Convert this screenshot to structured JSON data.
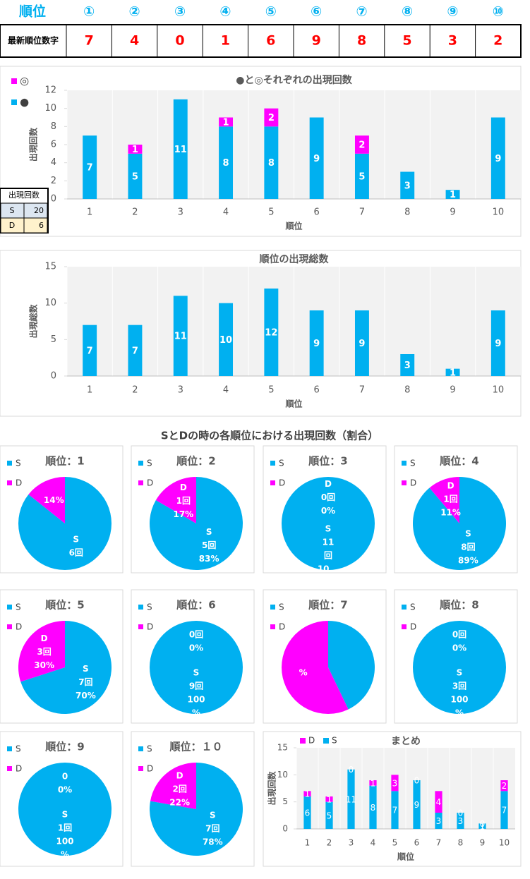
{
  "table": {
    "header": [
      "順位",
      "①",
      "②",
      "③",
      "④",
      "⑤",
      "⑥",
      "⑦",
      "⑧",
      "⑨",
      "⑩"
    ],
    "rows": [
      [
        "最新順位数字",
        7,
        4,
        0,
        1,
        6,
        9,
        8,
        5,
        3,
        2
      ]
    ]
  },
  "side_table": {
    "header": "出現回数",
    "rows": [
      [
        "S",
        20
      ],
      [
        "D",
        6
      ]
    ]
  },
  "heading": "SとDの時の各順位における出現回数（割合）",
  "chart_data": [
    {
      "type": "bar",
      "stacked": true,
      "title": "●と◎それぞれの出現回数",
      "x_label": "順位",
      "y_label": "出現回数",
      "legend": "top-left",
      "categories": [
        1,
        2,
        3,
        4,
        5,
        6,
        7,
        8,
        9,
        10
      ],
      "ylim": [
        0,
        12
      ],
      "yticks": [
        0,
        2,
        4,
        6,
        8,
        10,
        12
      ],
      "series": [
        {
          "name": "●",
          "color": "#00b0f0",
          "values": [
            7,
            5,
            11,
            8,
            8,
            9,
            5,
            3,
            1,
            9
          ]
        },
        {
          "name": "◎",
          "color": "#ff00ff",
          "values": [
            0,
            1,
            0,
            1,
            2,
            0,
            2,
            0,
            0,
            0
          ],
          "value_labels": [
            null,
            "1",
            null,
            "1",
            "2",
            null,
            "2",
            null,
            null,
            null
          ]
        }
      ]
    },
    {
      "type": "bar",
      "title": "順位の出現総数",
      "x_label": "順位",
      "y_label": "出現総数",
      "categories": [
        1,
        2,
        3,
        4,
        5,
        6,
        7,
        8,
        9,
        10
      ],
      "ylim": [
        0,
        15
      ],
      "yticks": [
        0,
        5,
        10,
        15
      ],
      "color": "#00b0f0",
      "values": [
        7,
        7,
        11,
        10,
        12,
        9,
        9,
        3,
        1,
        9
      ]
    },
    {
      "type": "pie",
      "title": "順位：1",
      "categories": [
        "S",
        "D"
      ],
      "colors": [
        "#00b0f0",
        "#ff00ff"
      ],
      "values": [
        6,
        1
      ],
      "value_labels": [
        [
          "S",
          "6回"
        ],
        [
          "14%"
        ]
      ]
    },
    {
      "type": "pie",
      "title": "順位：2",
      "categories": [
        "S",
        "D"
      ],
      "colors": [
        "#00b0f0",
        "#ff00ff"
      ],
      "values": [
        5,
        1
      ],
      "value_labels": [
        [
          "S",
          "5回",
          "83%"
        ],
        [
          "D",
          "1回",
          "17%"
        ]
      ]
    },
    {
      "type": "pie",
      "title": "順位：3",
      "categories": [
        "S",
        "D"
      ],
      "colors": [
        "#00b0f0",
        "#ff00ff"
      ],
      "values": [
        11,
        0
      ],
      "value_labels": [
        [
          "S",
          "11",
          "回",
          "10..."
        ],
        [
          "D",
          "0回",
          "0%"
        ]
      ]
    },
    {
      "type": "pie",
      "title": "順位：4",
      "categories": [
        "S",
        "D"
      ],
      "colors": [
        "#00b0f0",
        "#ff00ff"
      ],
      "values": [
        8,
        1
      ],
      "value_labels": [
        [
          "S",
          "8回",
          "89%"
        ],
        [
          "D",
          "1回",
          "11%"
        ]
      ]
    },
    {
      "type": "pie",
      "title": "順位：5",
      "categories": [
        "S",
        "D"
      ],
      "colors": [
        "#00b0f0",
        "#ff00ff"
      ],
      "values": [
        7,
        3
      ],
      "value_labels": [
        [
          "S",
          "7回",
          "70%"
        ],
        [
          "D",
          "3回",
          "30%"
        ]
      ]
    },
    {
      "type": "pie",
      "title": "順位：6",
      "categories": [
        "S",
        "D"
      ],
      "colors": [
        "#00b0f0",
        "#ff00ff"
      ],
      "values": [
        9,
        0
      ],
      "value_labels": [
        [
          "S",
          "9回",
          "100",
          "%"
        ],
        [
          "0回",
          "0%"
        ]
      ]
    },
    {
      "type": "pie",
      "title": "順位：7",
      "categories": [
        "S",
        "D"
      ],
      "colors": [
        "#00b0f0",
        "#ff00ff"
      ],
      "values": [
        3,
        4
      ],
      "value_labels": [
        [],
        [
          "%"
        ]
      ]
    },
    {
      "type": "pie",
      "title": "順位：8",
      "categories": [
        "S",
        "D"
      ],
      "colors": [
        "#00b0f0",
        "#ff00ff"
      ],
      "values": [
        3,
        0
      ],
      "value_labels": [
        [
          "S",
          "3回",
          "100",
          "%"
        ],
        [
          "0回",
          "0%"
        ]
      ]
    },
    {
      "type": "pie",
      "title": "順位：9",
      "categories": [
        "S",
        "D"
      ],
      "colors": [
        "#00b0f0",
        "#ff00ff"
      ],
      "values": [
        1,
        0
      ],
      "value_labels": [
        [
          "S",
          "1回",
          "100",
          "%"
        ],
        [
          "0",
          "0%"
        ]
      ]
    },
    {
      "type": "pie",
      "title": "順位：１０",
      "categories": [
        "S",
        "D"
      ],
      "colors": [
        "#00b0f0",
        "#ff00ff"
      ],
      "values": [
        7,
        2
      ],
      "value_labels": [
        [
          "S",
          "7回",
          "78%"
        ],
        [
          "D",
          "2回",
          "22%"
        ]
      ]
    },
    {
      "type": "bar",
      "stacked": true,
      "title": "まとめ",
      "x_label": "順位",
      "y_label": "出現回数",
      "legend": "top",
      "categories": [
        1,
        2,
        3,
        4,
        5,
        6,
        7,
        8,
        9,
        10
      ],
      "ylim": [
        0,
        15
      ],
      "yticks": [
        0,
        5,
        10,
        15
      ],
      "series": [
        {
          "name": "S",
          "color": "#00b0f0",
          "values": [
            6,
            5,
            11,
            8,
            7,
            9,
            3,
            3,
            1,
            7
          ]
        },
        {
          "name": "D",
          "color": "#ff00ff",
          "values": [
            1,
            1,
            0,
            1,
            3,
            0,
            4,
            0,
            0,
            2
          ]
        }
      ]
    }
  ]
}
